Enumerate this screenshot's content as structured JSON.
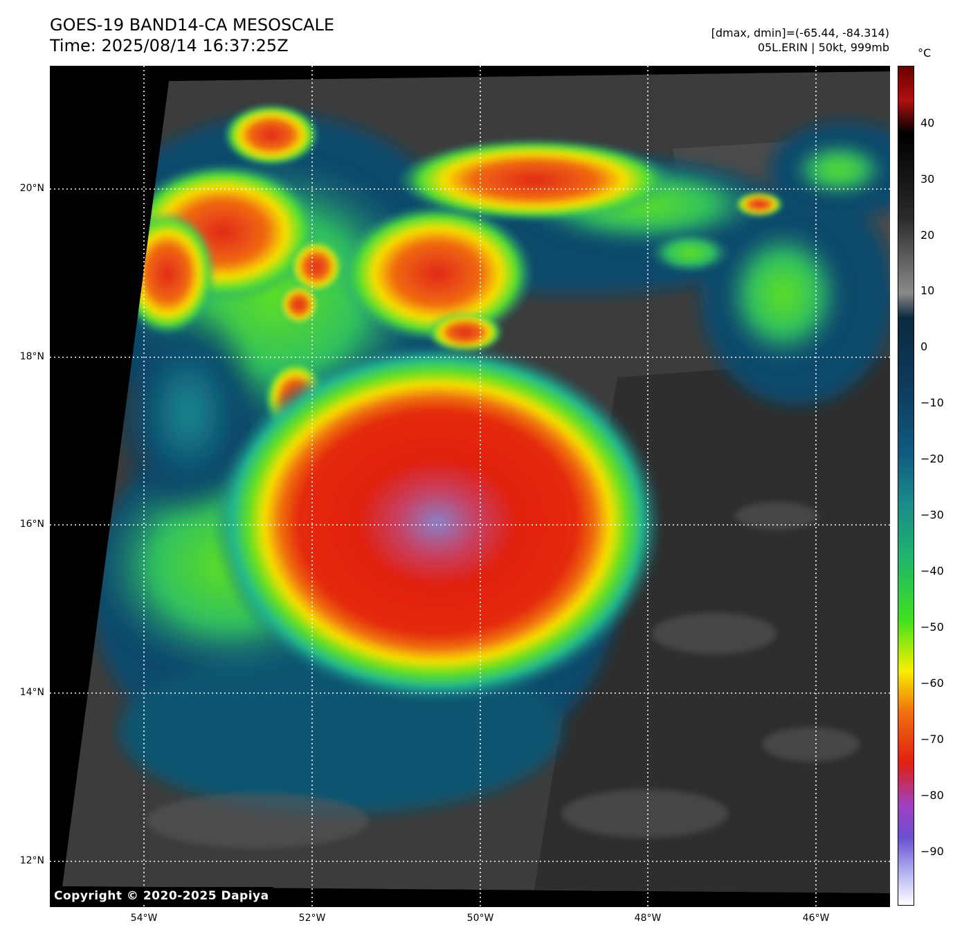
{
  "header": {
    "title_line1": "GOES-19 BAND14-CA MESOSCALE",
    "title_line2": "Time: 2025/08/14 16:37:25Z",
    "range_text": "[dmax, dmin]=(-65.44, -84.314)",
    "storm_text": "05L.ERIN | 50kt, 999mb"
  },
  "map": {
    "lat_labels": [
      "20°N",
      "18°N",
      "16°N",
      "14°N",
      "12°N"
    ],
    "lon_labels": [
      "54°W",
      "52°W",
      "50°W",
      "48°W",
      "46°W"
    ],
    "copyright": "Copyright © 2020-2025 Dapiya"
  },
  "colorbar": {
    "unit": "°C",
    "ticks": [
      "40",
      "30",
      "20",
      "10",
      "0",
      "−10",
      "−20",
      "−30",
      "−40",
      "−50",
      "−60",
      "−70",
      "−80",
      "−90"
    ]
  },
  "colors": {
    "core_red": "#e02010",
    "overshoot_purple": "#9090e0",
    "green": "#40e020",
    "yellow": "#f0f000",
    "teal": "#1a7080",
    "dark_blue": "#0a3a5c",
    "gray_low_cloud": "#4a4a4a"
  }
}
